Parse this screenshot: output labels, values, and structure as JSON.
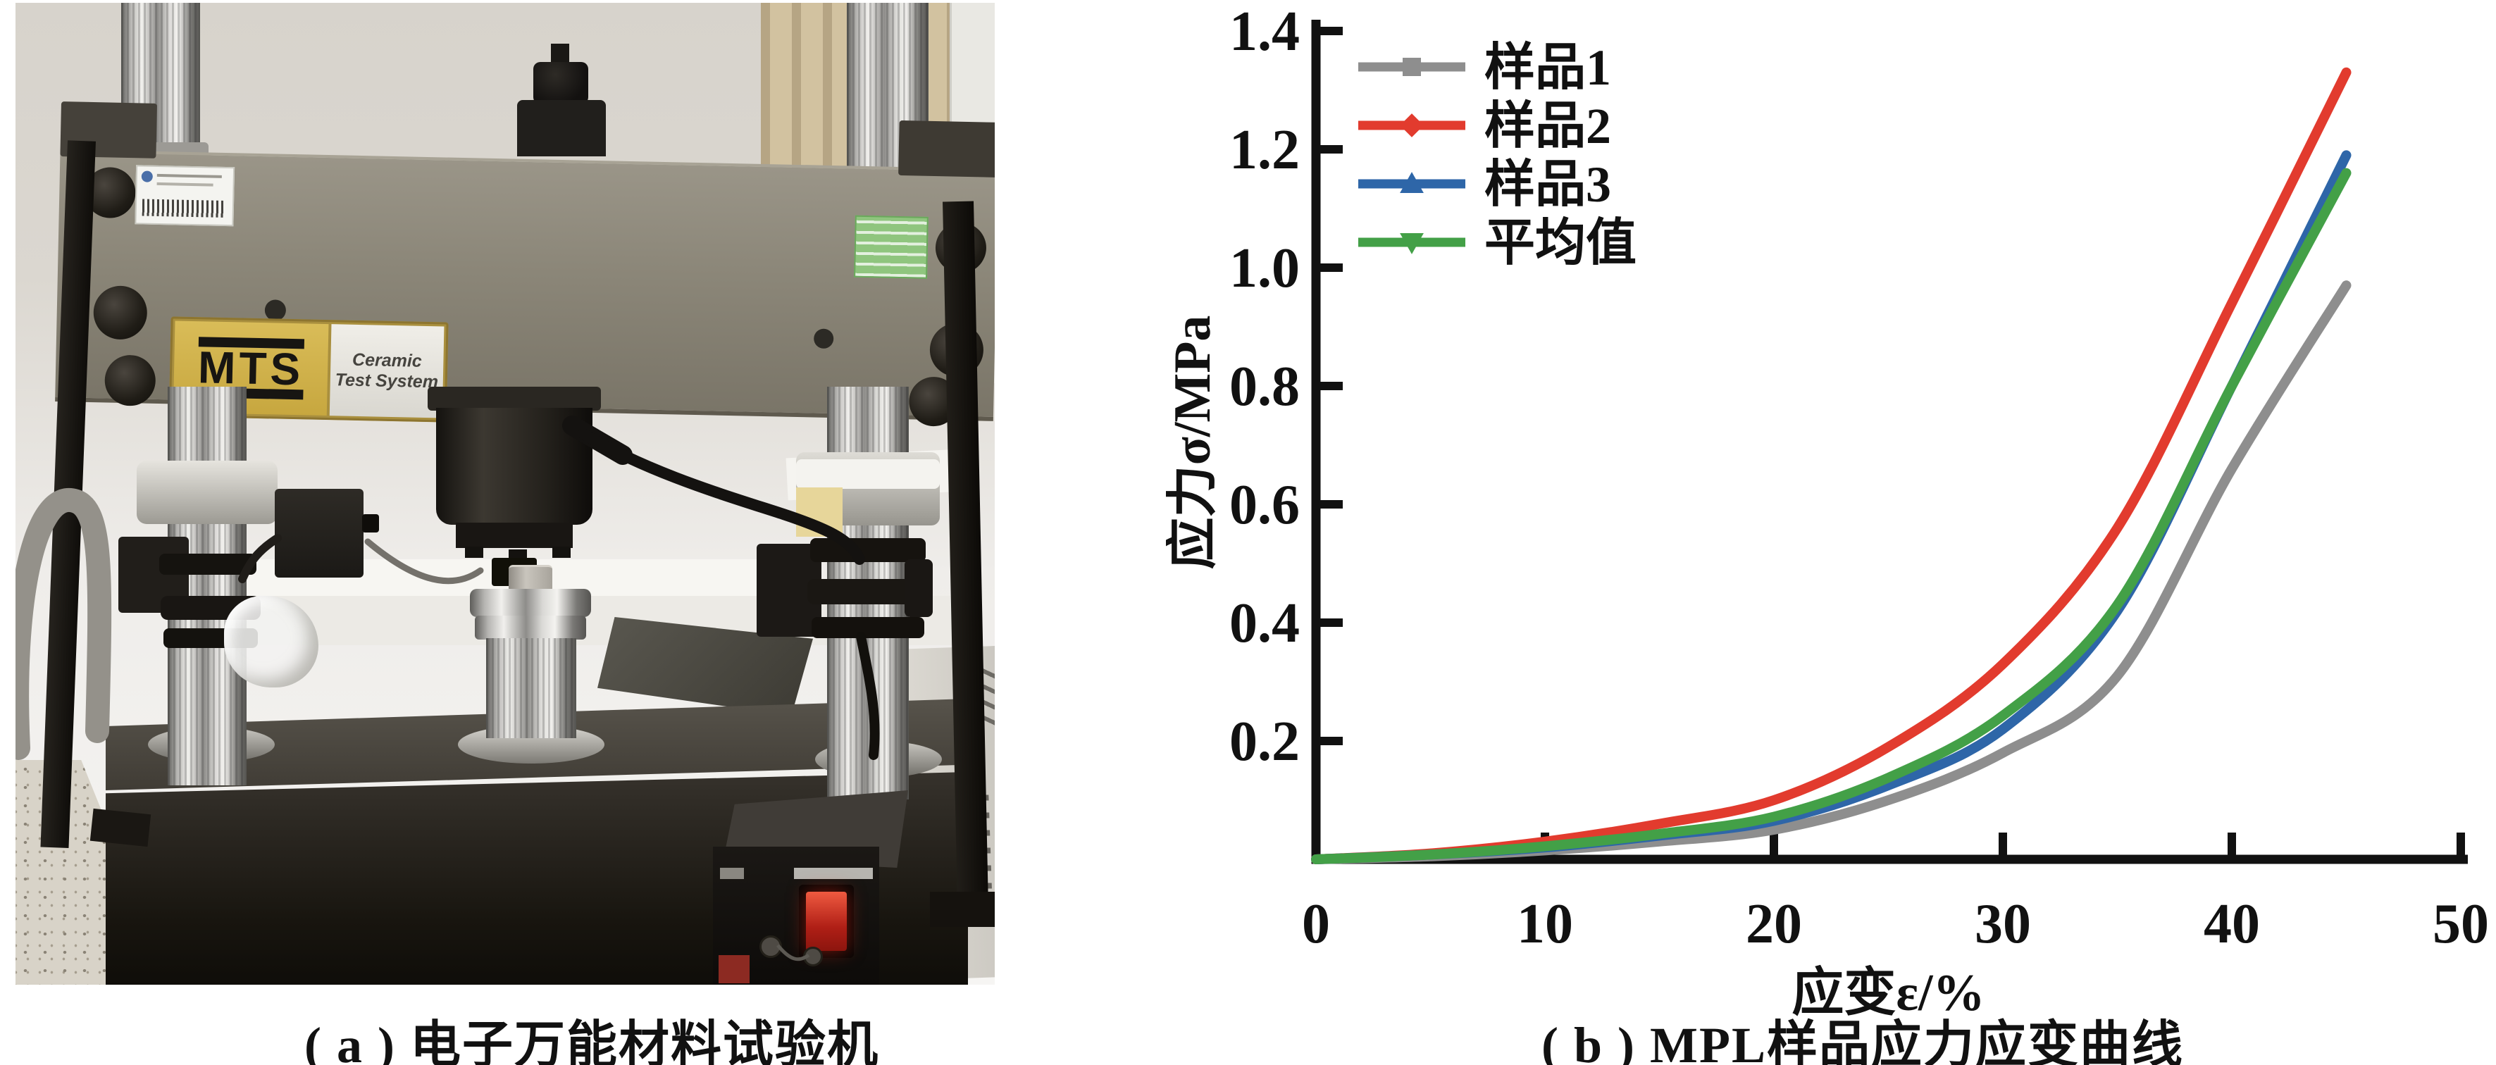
{
  "figure": {
    "panel_a": {
      "caption": "( a ) 电子万能材料试验机",
      "machine": {
        "brand": "MTS",
        "label_line1": "Ceramic",
        "label_line2": "Test System"
      }
    },
    "panel_b": {
      "caption": "( b ) MPL样品应力应变曲线"
    }
  },
  "chart_data": {
    "type": "line",
    "title": "",
    "xlabel": "应变ε/%",
    "ylabel": "应力σ/MPa",
    "xlim": [
      0,
      50
    ],
    "ylim": [
      0,
      1.4
    ],
    "x_tick_labels": [
      "0",
      "10",
      "20",
      "30",
      "40",
      "50"
    ],
    "x_tick_values": [
      0,
      10,
      20,
      30,
      40,
      50
    ],
    "y_tick_labels": [
      "0.2",
      "0.4",
      "0.6",
      "0.8",
      "1.0",
      "1.2",
      "1.4"
    ],
    "y_tick_values": [
      0.2,
      0.4,
      0.6,
      0.8,
      1.0,
      1.2,
      1.4
    ],
    "grid": false,
    "legend_position": "upper left",
    "x": [
      0,
      5,
      10,
      15,
      20,
      25,
      30,
      35,
      40,
      45
    ],
    "series": [
      {
        "id": "sample1",
        "name": "样品1",
        "color": "#8e8e8e",
        "marker": "square",
        "values": [
          0,
          0.005,
          0.015,
          0.03,
          0.05,
          0.1,
          0.18,
          0.31,
          0.66,
          0.97
        ]
      },
      {
        "id": "sample2",
        "name": "样品2",
        "color": "#e23b2e",
        "marker": "diamond",
        "values": [
          0,
          0.01,
          0.03,
          0.06,
          0.1,
          0.19,
          0.33,
          0.56,
          0.94,
          1.33
        ]
      },
      {
        "id": "sample3",
        "name": "样品3",
        "color": "#2e66a8",
        "marker": "triangle-up",
        "values": [
          0,
          0.008,
          0.02,
          0.04,
          0.065,
          0.125,
          0.22,
          0.42,
          0.8,
          1.19
        ]
      },
      {
        "id": "average",
        "name": "平均值",
        "color": "#43a047",
        "marker": "triangle-down",
        "values": [
          0,
          0.008,
          0.022,
          0.043,
          0.072,
          0.138,
          0.243,
          0.43,
          0.8,
          1.16
        ]
      }
    ]
  },
  "colors": {
    "axis": "#111111",
    "background": "#ffffff",
    "machine_beam": "#8b8678",
    "mts_plaque_gold": "#cfae48",
    "power_switch_red": "#c2271d"
  }
}
